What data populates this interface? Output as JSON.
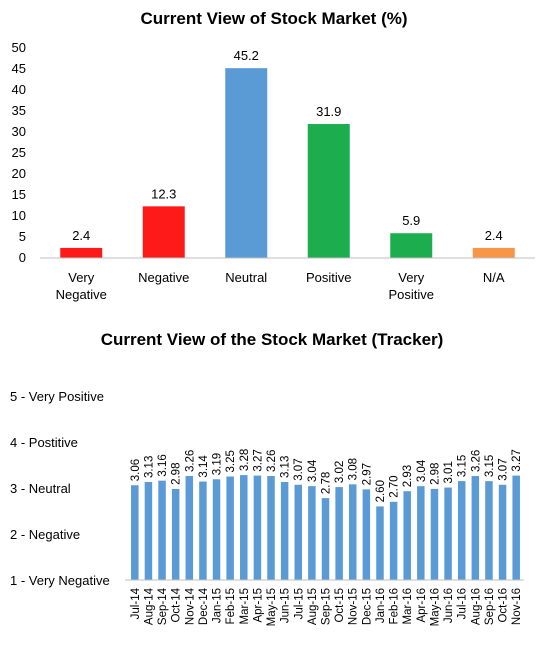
{
  "chart_data": [
    {
      "type": "bar",
      "title": "Current View of Stock Market (%)",
      "categories": [
        [
          "Very",
          "Negative"
        ],
        [
          "Negative"
        ],
        [
          "Neutral"
        ],
        [
          "Positive"
        ],
        [
          "Very",
          "Positive"
        ],
        [
          "N/A"
        ]
      ],
      "values": [
        2.4,
        12.3,
        45.2,
        31.9,
        5.9,
        2.4
      ],
      "value_labels": [
        "2.4",
        "12.3",
        "45.2",
        "31.9",
        "5.9",
        "2.4"
      ],
      "colors": [
        "#ff1a1a",
        "#ff1a1a",
        "#5b9bd5",
        "#1cae4e",
        "#1cae4e",
        "#f79646"
      ],
      "ylim": [
        0,
        50
      ],
      "yticks": [
        "0",
        "5",
        "10",
        "15",
        "20",
        "25",
        "30",
        "35",
        "40",
        "45",
        "50"
      ],
      "grid": false
    },
    {
      "type": "bar",
      "title": "Current View of the Stock Market (Tracker)",
      "categories": [
        "Jul-14",
        "Aug-14",
        "Sep-14",
        "Oct-14",
        "Nov-14",
        "Dec-14",
        "Jan-15",
        "Feb-15",
        "Mar-15",
        "Apr-15",
        "May-15",
        "Jun-15",
        "Jul-15",
        "Aug-15",
        "Sep-15",
        "Oct-15",
        "Nov-15",
        "Dec-15",
        "Jan-16",
        "Feb-16",
        "Mar-16",
        "Apr-16",
        "May-16",
        "Jun-16",
        "Jul-16",
        "Aug-16",
        "Sep-16",
        "Oct-16",
        "Nov-16"
      ],
      "values": [
        3.06,
        3.13,
        3.16,
        2.98,
        3.26,
        3.14,
        3.19,
        3.25,
        3.28,
        3.27,
        3.26,
        3.13,
        3.07,
        3.04,
        2.78,
        3.02,
        3.08,
        2.97,
        2.6,
        2.7,
        2.93,
        3.04,
        2.98,
        3.01,
        3.15,
        3.26,
        3.15,
        3.07,
        3.27
      ],
      "value_labels": [
        "3.06",
        "3.13",
        "3.16",
        "2.98",
        "3.26",
        "3.14",
        "3.19",
        "3.25",
        "3.28",
        "3.27",
        "3.26",
        "3.13",
        "3.07",
        "3.04",
        "2.78",
        "3.02",
        "3.08",
        "2.97",
        "2.60",
        "2.70",
        "2.93",
        "3.04",
        "2.98",
        "3.01",
        "3.15",
        "3.26",
        "3.15",
        "3.07",
        "3.27"
      ],
      "color": "#5b9bd5",
      "ylim": [
        1,
        5
      ],
      "yticks": [
        "1 - Very Negative",
        "2 - Negative",
        "3 - Neutral",
        "4 - Postitive",
        "5 - Very Positive"
      ],
      "grid": false
    }
  ]
}
